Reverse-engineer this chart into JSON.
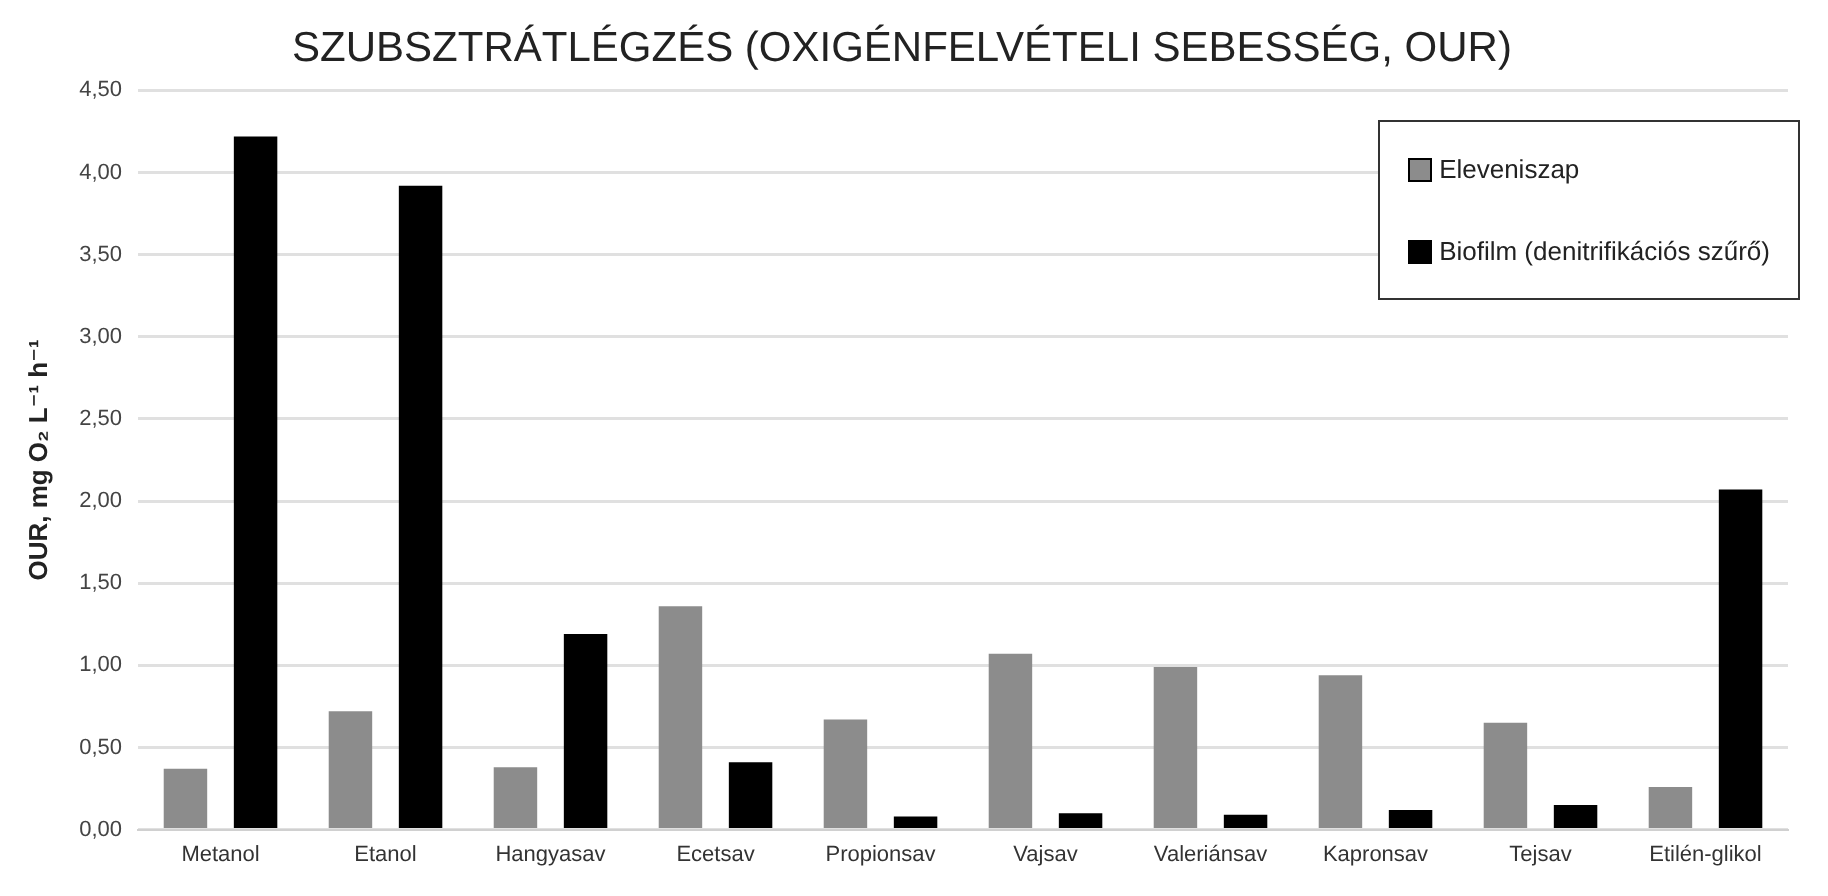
{
  "chart_data": {
    "type": "bar",
    "title": "SZUBSZTRÁTLÉGZÉS (OXIGÉNFELVÉTELI SEBESSÉG, OUR)",
    "ylabel": "OUR, mg O₂ L⁻¹ h⁻¹",
    "categories": [
      "Metanol",
      "Etanol",
      "Hangyasav",
      "Ecetsav",
      "Propionsav",
      "Vajsav",
      "Valeriánsav",
      "Kapronsav",
      "Tejsav",
      "Etilén-glikol"
    ],
    "series": [
      {
        "name": "Eleveniszap",
        "color": "#8c8c8c",
        "values": [
          0.37,
          0.72,
          0.38,
          1.36,
          0.67,
          1.07,
          0.99,
          0.94,
          0.65,
          0.26
        ]
      },
      {
        "name": "Biofilm (denitrifikációs szűrő)",
        "color": "#000000",
        "values": [
          4.22,
          3.92,
          1.19,
          0.41,
          0.08,
          0.1,
          0.09,
          0.12,
          0.15,
          2.07
        ]
      }
    ],
    "ylim": [
      0,
      4.5
    ],
    "yticks": [
      {
        "value": 0,
        "label": "0,00"
      },
      {
        "value": 0.5,
        "label": "0,50"
      },
      {
        "value": 1,
        "label": "1,00"
      },
      {
        "value": 1.5,
        "label": "1,50"
      },
      {
        "value": 2,
        "label": "2,00"
      },
      {
        "value": 2.5,
        "label": "2,50"
      },
      {
        "value": 3,
        "label": "3,00"
      },
      {
        "value": 3.5,
        "label": "3,50"
      },
      {
        "value": 4,
        "label": "4,00"
      },
      {
        "value": 4.5,
        "label": "4,50"
      }
    ],
    "grid": "y",
    "legend": "top right"
  }
}
